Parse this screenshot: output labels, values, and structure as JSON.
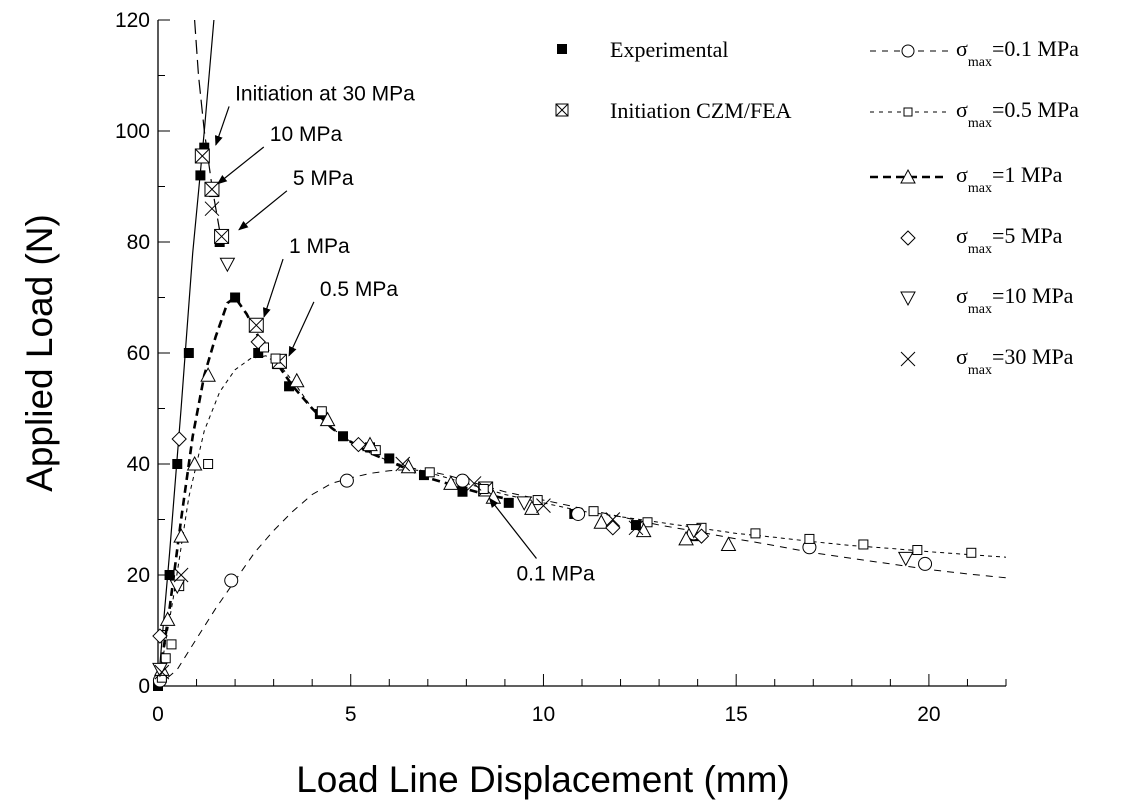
{
  "chart_data": {
    "type": "scatter",
    "xlabel": "Load Line Displacement (mm)",
    "ylabel": "Applied Load (N)",
    "xlim": [
      0,
      22
    ],
    "ylim": [
      0,
      120
    ],
    "x_ticks": [
      0,
      5,
      10,
      15,
      20
    ],
    "y_ticks": [
      0,
      20,
      40,
      60,
      80,
      100,
      120
    ],
    "grid": false,
    "legend_position": "top-right",
    "legend": {
      "experimental": "Experimental",
      "initiation": "Initiation CZM/FEA",
      "sigma_symbol": "σ",
      "sigma_subscript": "max",
      "sigma_values": [
        "=0.1 MPa",
        "=0.5 MPa",
        "=1 MPa",
        "=5 MPa",
        "=10 MPa",
        "=30 MPa"
      ]
    },
    "annotations": [
      {
        "text": "Initiation at 30 MPa",
        "x": 2.0,
        "y": 105.5,
        "ax": 1.5,
        "ay": 97.5
      },
      {
        "text": "10 MPa",
        "x": 2.9,
        "y": 98.2,
        "ax": 1.55,
        "ay": 90.5
      },
      {
        "text": "5 MPa",
        "x": 3.5,
        "y": 90.3,
        "ax": 2.1,
        "ay": 82.2
      },
      {
        "text": "1 MPa",
        "x": 3.4,
        "y": 78.0,
        "ax": 2.75,
        "ay": 66.5
      },
      {
        "text": "0.5 MPa",
        "x": 4.2,
        "y": 70.3,
        "ax": 3.4,
        "ay": 59.5
      },
      {
        "text": "0.1 MPa",
        "x": 9.3,
        "y": 19.0,
        "ax": 8.6,
        "ay": 33.8
      }
    ],
    "curves": [
      {
        "name": "σmax=30 MPa",
        "style": "solid",
        "x": [
          0,
          0.3,
          0.6,
          0.9,
          1.2,
          1.45
        ],
        "y": [
          0,
          24,
          50,
          78,
          100,
          120
        ]
      },
      {
        "name": "σmax=10 MPa",
        "style": "longdash",
        "x": [
          0.95,
          1.05,
          1.2,
          1.4,
          1.6
        ],
        "y": [
          120,
          110,
          100,
          90,
          82
        ]
      },
      {
        "name": "σmax=1 MPa",
        "style": "heavydash",
        "x": [
          0,
          0.3,
          0.6,
          0.9,
          1.2,
          1.5,
          1.8,
          2.0,
          2.3,
          2.6,
          3.0,
          3.5,
          4.0,
          4.5,
          5.0,
          5.5,
          6.0,
          6.5,
          7.0,
          7.5,
          8.0,
          8.5,
          9.0
        ],
        "y": [
          0,
          14,
          30,
          45,
          56,
          63,
          69,
          70,
          67,
          63,
          59,
          54,
          50,
          46.5,
          44,
          42,
          40.5,
          39,
          37.5,
          36.5,
          35.5,
          34.5,
          33.8
        ]
      },
      {
        "name": "σmax=0.5 MPa",
        "style": "shortdash",
        "x": [
          0,
          0.4,
          0.8,
          1.2,
          1.6,
          2.0,
          2.4,
          2.8,
          3.2,
          3.6,
          4.0,
          4.5,
          5.0,
          5.5,
          6.0,
          6.5,
          7.0,
          8.0,
          9.0,
          10.0,
          11.0,
          12.0,
          13.0,
          14.0,
          15.0,
          16.0,
          17.0,
          18.0,
          19.0,
          20.0,
          21.0,
          22.0
        ],
        "y": [
          0,
          16,
          34,
          46,
          53,
          57,
          59,
          59.5,
          57.5,
          54,
          50,
          46.5,
          44,
          42,
          40.5,
          39.5,
          38.5,
          36.5,
          34.5,
          33,
          31.5,
          30.5,
          29.5,
          28.5,
          27.5,
          26.8,
          26,
          25.3,
          24.8,
          24.2,
          23.7,
          23.2
        ]
      },
      {
        "name": "σmax=0.1 MPa",
        "style": "dash",
        "x": [
          0,
          0.5,
          1.0,
          1.5,
          2.0,
          2.5,
          3.0,
          3.5,
          4.0,
          4.5,
          5.0,
          5.5,
          6.0,
          6.5,
          7.0,
          7.5,
          8.0,
          8.5,
          9.0,
          10.0,
          11.0,
          12.0,
          13.0,
          14.0,
          15.0,
          16.0,
          17.0,
          18.0,
          19.0,
          20.0,
          21.0,
          22.0
        ],
        "y": [
          0,
          3,
          8.5,
          14,
          19,
          24,
          28,
          31.5,
          34.5,
          36.5,
          37.5,
          38.3,
          38.8,
          39,
          38.7,
          38,
          37,
          36,
          35,
          33.5,
          32,
          30.5,
          29,
          27.8,
          26.5,
          25.3,
          24,
          23,
          22,
          21,
          20.2,
          19.5
        ]
      }
    ],
    "series": [
      {
        "name": "Experimental",
        "marker": "filled-square",
        "x": [
          0,
          0.3,
          0.5,
          0.8,
          1.1,
          1.2,
          1.45,
          1.6,
          2.0,
          2.6,
          3.1,
          3.4,
          4.2,
          4.8,
          5.5,
          6.0,
          6.9,
          7.9,
          9.1,
          10.8,
          12.4,
          13.9
        ],
        "y": [
          0,
          20,
          40,
          60,
          92,
          97,
          89,
          80,
          70,
          60,
          58,
          54,
          49,
          45,
          43,
          41,
          38,
          35,
          33,
          31,
          29,
          27
        ]
      },
      {
        "name": "Initiation CZM/FEA",
        "marker": "boxed-x",
        "x": [
          1.15,
          1.4,
          1.65,
          2.55,
          3.15,
          8.5
        ],
        "y": [
          95.5,
          89.5,
          81,
          65,
          58.5,
          35.5
        ]
      },
      {
        "name": "σmax=0.1 MPa",
        "marker": "circle",
        "x": [
          0.05,
          1.9,
          4.9,
          7.9,
          10.9,
          13.9,
          16.9,
          19.9
        ],
        "y": [
          1,
          19,
          37,
          37,
          31,
          27.5,
          25,
          22
        ]
      },
      {
        "name": "σmax=0.5 MPa",
        "marker": "square",
        "x": [
          0.1,
          0.2,
          0.35,
          0.55,
          1.3,
          2.75,
          3.05,
          4.25,
          5.65,
          7.05,
          8.45,
          9.85,
          11.3,
          12.7,
          14.1,
          15.5,
          16.9,
          18.3,
          19.7,
          21.1
        ],
        "y": [
          1.5,
          5,
          7.5,
          18,
          40,
          61,
          59,
          49.5,
          42.5,
          38.5,
          35.5,
          33.5,
          31.5,
          29.5,
          28.5,
          27.5,
          26.5,
          25.5,
          24.5,
          24
        ]
      },
      {
        "name": "σmax=1 MPa",
        "marker": "triangle-up",
        "x": [
          0.1,
          0.25,
          0.6,
          0.95,
          1.3,
          3.6,
          4.4,
          5.5,
          6.5,
          7.6,
          8.7,
          9.7,
          11.5,
          12.6,
          13.7,
          14.8
        ],
        "y": [
          3,
          12,
          27,
          40,
          56,
          55,
          48,
          43.5,
          39.5,
          36.5,
          34,
          32,
          29.5,
          28,
          26.5,
          25.5
        ]
      },
      {
        "name": "σmax=5 MPa",
        "marker": "diamond",
        "x": [
          0.05,
          0.55,
          2.6,
          5.2,
          11.8,
          14.1
        ],
        "y": [
          9,
          44.5,
          62,
          43.5,
          28.5,
          27
        ]
      },
      {
        "name": "σmax=10 MPa",
        "marker": "triangle-down",
        "x": [
          0.05,
          0.5,
          1.8,
          9.5,
          13.9,
          19.4
        ],
        "y": [
          3,
          18,
          76,
          33,
          28,
          23
        ]
      },
      {
        "name": "σmax=30 MPa",
        "marker": "x",
        "x": [
          0.1,
          0.6,
          1.4,
          6.35,
          8.2,
          10.0,
          11.8,
          12.4
        ],
        "y": [
          2.5,
          20,
          86,
          40,
          36.5,
          32.5,
          30,
          28.5
        ]
      }
    ]
  }
}
